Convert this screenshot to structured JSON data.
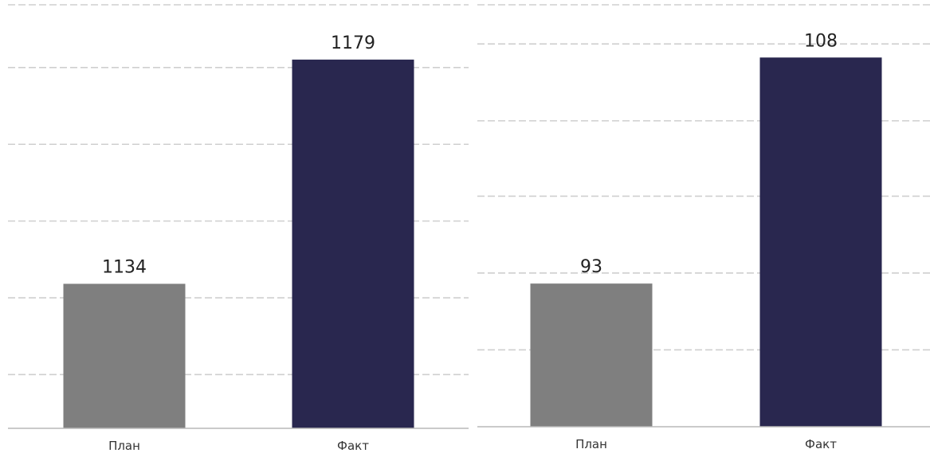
{
  "chart_data": [
    {
      "type": "bar",
      "categories": [
        "План",
        "Факт"
      ],
      "values": [
        1134,
        1179
      ],
      "colors": [
        "#7f7f7f",
        "#29274f"
      ],
      "ylim": [
        1105,
        1190
      ],
      "gridlines": [
        1115.8,
        1131.2,
        1146.6,
        1162.0,
        1177.4,
        1190
      ],
      "grid": true,
      "legend": "none"
    },
    {
      "type": "bar",
      "categories": [
        "План",
        "Факт"
      ],
      "values": [
        93,
        108
      ],
      "colors": [
        "#7f7f7f",
        "#29274f"
      ],
      "ylim": [
        83.5,
        111.5
      ],
      "gridlines": [
        88.6,
        93.7,
        98.8,
        103.8,
        108.9,
        111.5
      ],
      "grid": true,
      "legend": "none"
    }
  ]
}
